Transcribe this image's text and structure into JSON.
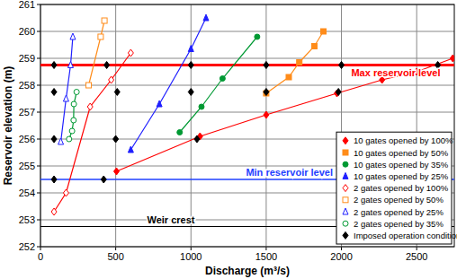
{
  "chart_data": {
    "type": "scatter",
    "x_label": "Discharge (m³/s)",
    "y_label": "Reservoir elevation (m)",
    "xlim": [
      0,
      2750
    ],
    "ylim": [
      252,
      261
    ],
    "xticks": [
      0,
      500,
      1000,
      1500,
      2000,
      2500
    ],
    "yticks": [
      252,
      253,
      254,
      255,
      256,
      257,
      258,
      259,
      260,
      261
    ],
    "grid": true,
    "legend": "bottom-right",
    "annotations": [
      {
        "y": 258.75,
        "label": "Max reservoir level",
        "color": "#ff0000"
      },
      {
        "y": 254.5,
        "label": "Min reservoir level",
        "color": "#1f3fff"
      },
      {
        "y": 252.75,
        "label": "Weir crest",
        "color": "#000000"
      }
    ],
    "series": [
      {
        "name": "10 gates opened by 100%",
        "color": "#ff0000",
        "marker": "diamond",
        "line_style": "solid",
        "x": [
          505,
          1060,
          1500,
          1970,
          2270,
          2500,
          2740
        ],
        "values": [
          254.8,
          256.1,
          256.9,
          257.7,
          258.2,
          258.5,
          259.0
        ]
      },
      {
        "name": "10 gates opened by 50%",
        "color": "#ff8c1a",
        "marker": "square",
        "line_style": "solid",
        "x": [
          1500,
          1650,
          1720,
          1820,
          1880
        ],
        "values": [
          257.7,
          258.3,
          258.85,
          259.45,
          260.0
        ]
      },
      {
        "name": "10 gates opened by 35%",
        "color": "#009933",
        "marker": "circle",
        "line_style": "solid",
        "x": [
          925,
          1070,
          1210,
          1440
        ],
        "values": [
          256.25,
          257.2,
          258.25,
          259.8
        ]
      },
      {
        "name": "10 gates opened by 25%",
        "color": "#1f1fff",
        "marker": "triangle",
        "line_style": "solid",
        "x": [
          600,
          790,
          1000,
          1100
        ],
        "values": [
          255.6,
          257.3,
          259.35,
          260.5
        ]
      },
      {
        "name": "2 gates opened by 100%",
        "color": "#ff0000",
        "marker": "open-diamond",
        "line_style": "solid",
        "x": [
          90,
          170,
          330,
          470,
          600
        ],
        "values": [
          253.3,
          254.0,
          257.2,
          258.2,
          259.2
        ]
      },
      {
        "name": "2 gates opened by 50%",
        "color": "#ff8c1a",
        "marker": "open-square",
        "line_style": "solid",
        "x": [
          320,
          400,
          425
        ],
        "values": [
          258.0,
          259.8,
          260.4
        ]
      },
      {
        "name": "2 gates opened by 25%",
        "color": "#1f1fff",
        "marker": "open-triangle",
        "line_style": "solid",
        "x": [
          135,
          170,
          200,
          215
        ],
        "values": [
          255.9,
          257.5,
          258.75,
          259.8
        ]
      },
      {
        "name": "2 gates opened by 35%",
        "color": "#009933",
        "marker": "open-circle",
        "line_style": "solid",
        "x": [
          190,
          210,
          220,
          222,
          240
        ],
        "values": [
          256.0,
          256.3,
          256.7,
          257.3,
          257.75
        ]
      },
      {
        "name": "Imposed operation conditions",
        "color": "#000000",
        "marker": "diamond",
        "line_style": "none",
        "x": [
          90,
          440,
          1000,
          1500,
          2000,
          2640,
          90,
          510,
          1000,
          1500,
          1980,
          90,
          500,
          1040,
          90,
          420
        ],
        "values": [
          258.75,
          258.75,
          258.75,
          258.75,
          258.75,
          258.75,
          257.75,
          257.75,
          257.75,
          257.75,
          257.75,
          256,
          256,
          256,
          254.5,
          254.5
        ]
      }
    ]
  }
}
